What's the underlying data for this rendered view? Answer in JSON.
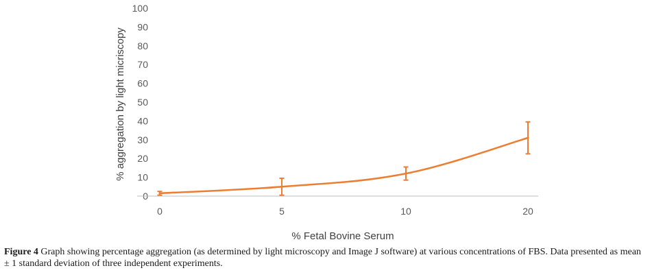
{
  "chart_data": {
    "type": "line",
    "categories": [
      "0",
      "5",
      "10",
      "20"
    ],
    "series": [
      {
        "values": [
          1.5,
          5,
          12,
          31
        ],
        "error": [
          1,
          4.5,
          3.5,
          8.5
        ],
        "color": "#ED7D31"
      }
    ],
    "ylim": [
      0,
      100
    ],
    "yticks": [
      "0",
      "10",
      "20",
      "30",
      "40",
      "50",
      "60",
      "70",
      "80",
      "90",
      "100"
    ],
    "xlabel": "% Fetal Bovine Serum",
    "ylabel": "% aggregation by light micriscopy",
    "grid": false
  },
  "caption": {
    "label": "Figure 4",
    "text": " Graph showing percentage aggregation (as determined by light microscopy and Image J software) at various concentrations of FBS. Data presented as mean  ± 1 standard deviation of three independent experiments."
  }
}
